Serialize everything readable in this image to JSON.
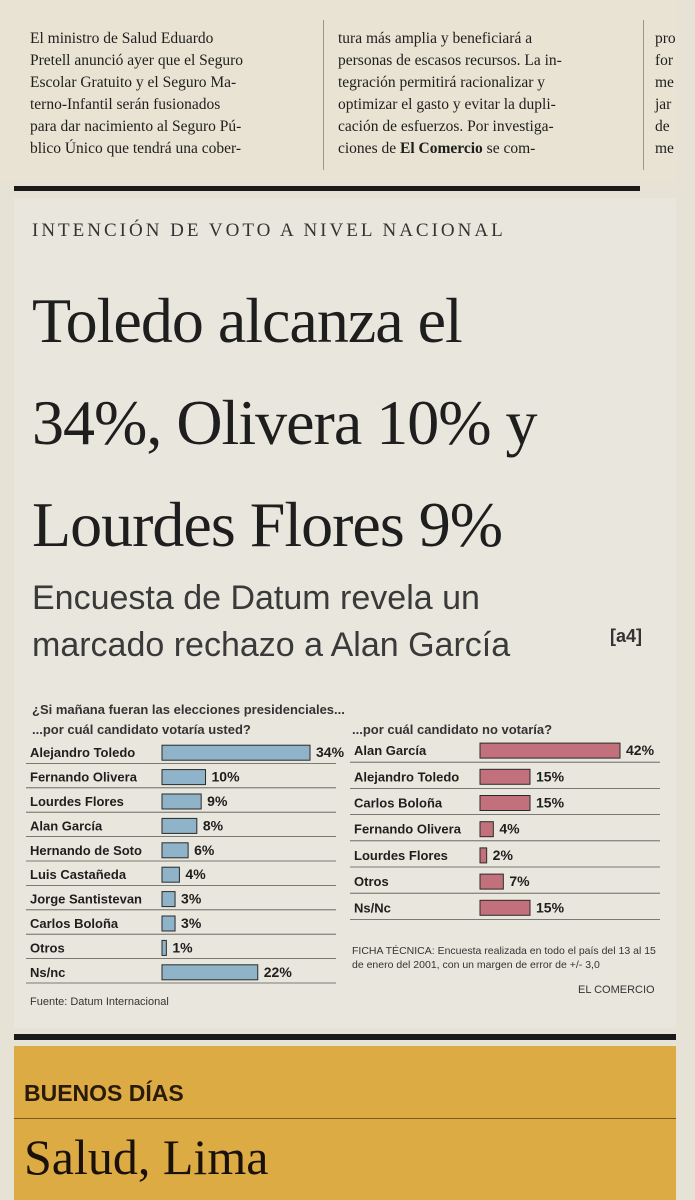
{
  "top_article": {
    "col1": [
      "El ministro de Salud Eduardo",
      "Pretell anunció ayer que el Seguro",
      "Escolar Gratuito y el Seguro Ma-",
      "terno-Infantil serán fusionados",
      "para dar nacimiento al Seguro Pú-",
      "blico Único que tendrá una cober-"
    ],
    "col2": [
      "tura más amplia y beneficiará a",
      "personas de escasos recursos. La in-",
      "tegración permitirá racionalizar y",
      "optimizar el gasto y evitar la dupli-",
      "cación de esfuerzos. Por investiga-"
    ],
    "col2_last_pre": "ciones de ",
    "col2_last_bold": "El Comercio",
    "col2_last_post": " se com-",
    "col3": [
      "pro",
      "for",
      "me",
      "jar",
      "de",
      "me"
    ]
  },
  "kicker": "INTENCIÓN DE VOTO A NIVEL NACIONAL",
  "headline": [
    "Toledo alcanza el",
    "34%, Olivera 10% y",
    "Lourdes Flores 9%"
  ],
  "deck": [
    "Encuesta de Datum revela un",
    "marcado rechazo a Alan García"
  ],
  "deck_ref": "[a4]",
  "colors": {
    "left_bar": "#8fb3c8",
    "right_bar": "#c2707c",
    "bottom_band": "#dcab43"
  },
  "chart_data": [
    {
      "type": "bar",
      "orientation": "horizontal",
      "title": "¿Si mañana fueran las elecciones presidenciales...",
      "subtitle": "...por cuál candidato votaría usted?",
      "categories": [
        "Alejandro Toledo",
        "Fernando Olivera",
        "Lourdes Flores",
        "Alan García",
        "Hernando de Soto",
        "Luis Castañeda",
        "Jorge Santistevan",
        "Carlos Boloña",
        "Otros",
        "Ns/nc"
      ],
      "values": [
        34,
        10,
        9,
        8,
        6,
        4,
        3,
        3,
        1,
        22
      ],
      "labels": [
        "34%",
        "10%",
        "9%",
        "8%",
        "6%",
        "4%",
        "3%",
        "3%",
        "1%",
        "22%"
      ],
      "xlim": [
        0,
        34
      ]
    },
    {
      "type": "bar",
      "orientation": "horizontal",
      "subtitle": "...por cuál candidato no votaría?",
      "categories": [
        "Alan García",
        "Alejandro Toledo",
        "Carlos Boloña",
        "Fernando Olivera",
        "Lourdes Flores",
        "Otros",
        "Ns/Nc"
      ],
      "values": [
        42,
        15,
        15,
        4,
        2,
        7,
        15
      ],
      "labels": [
        "42%",
        "15%",
        "15%",
        "4%",
        "2%",
        "7%",
        "15%"
      ],
      "xlim": [
        0,
        42
      ]
    }
  ],
  "ficha": "FICHA TÉCNICA: Encuesta realizada en todo el país del 13 al 15 de enero del 2001, con un margen de error de +/- 3,0",
  "source": "Fuente: Datum Internacional",
  "brand": "EL COMERCIO",
  "bottom": {
    "label": "BUENOS DÍAS",
    "title": "Salud, Lima"
  }
}
